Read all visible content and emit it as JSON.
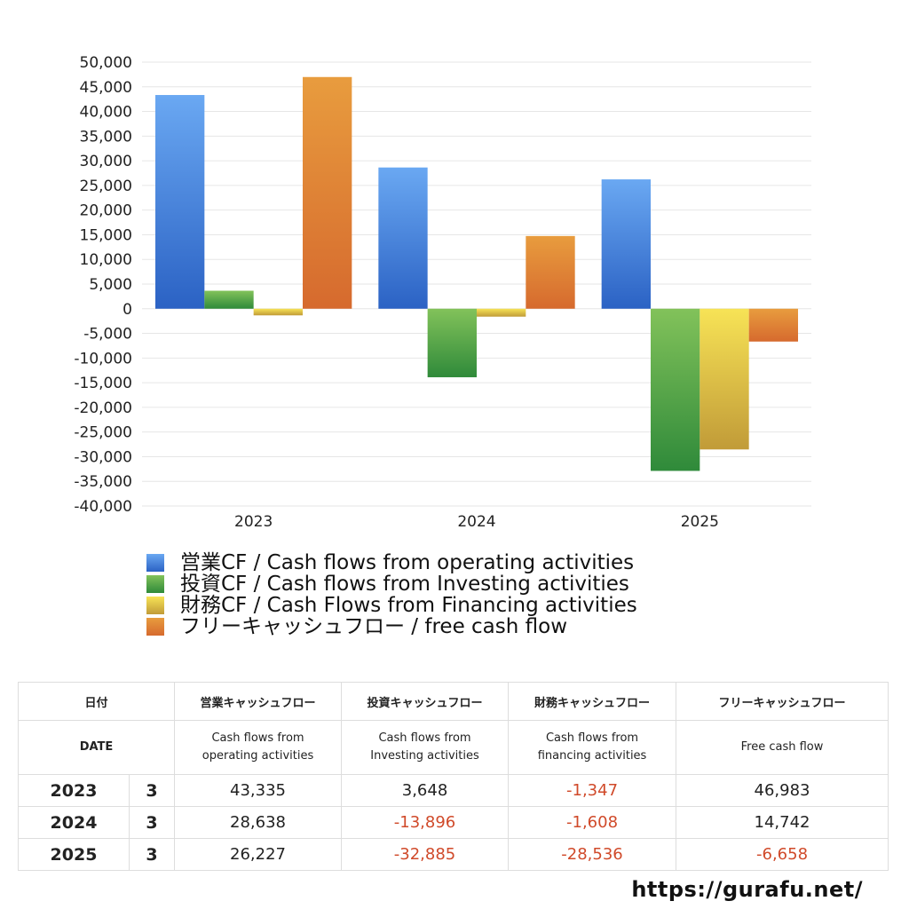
{
  "chart_data": {
    "type": "bar",
    "categories": [
      "2023",
      "2024",
      "2025"
    ],
    "ylim": [
      -40000,
      50000
    ],
    "y_ticks": [
      "50,000",
      "45,000",
      "40,000",
      "35,000",
      "30,000",
      "25,000",
      "20,000",
      "15,000",
      "10,000",
      "5,000",
      "0",
      "-5,000",
      "-10,000",
      "-15,000",
      "-20,000",
      "-25,000",
      "-30,000",
      "-35,000",
      "-40,000"
    ],
    "grid": true,
    "legend_placement": "bottom",
    "series": [
      {
        "name": "営業CF / Cash flows from operating activities",
        "values": [
          43335,
          28638,
          26227
        ],
        "color_top": "#6aa8f2",
        "color_bottom": "#2b62c4"
      },
      {
        "name": "投資CF / Cash flows from Investing activities",
        "values": [
          3648,
          -13896,
          -32885
        ],
        "color_top": "#82c25a",
        "color_bottom": "#2f8a3a"
      },
      {
        "name": "財務CF / Cash Flows from Financing activities",
        "values": [
          -1347,
          -1608,
          -28536
        ],
        "color_top": "#f7e356",
        "color_bottom": "#c19b38"
      },
      {
        "name": "フリーキャッシュフロー / free cash flow",
        "values": [
          46983,
          14742,
          -6658
        ],
        "color_top": "#e89c3e",
        "color_bottom": "#d66a2e"
      }
    ]
  },
  "table": {
    "header": {
      "date_jp": "日付",
      "operating_jp": "営業キャッシュフロー",
      "investing_jp": "投資キャッシュフロー",
      "financing_jp": "財務キャッシュフロー",
      "free_jp": "フリーキャッシュフロー",
      "date_en": "DATE",
      "operating_en_1": "Cash flows from",
      "operating_en_2": "operating activities",
      "investing_en_1": "Cash flows from",
      "investing_en_2": "Investing activities",
      "financing_en_1": "Cash flows from",
      "financing_en_2": "financing activities",
      "free_en": "Free cash flow"
    },
    "rows": [
      {
        "year": "2023",
        "month": "3",
        "operating": "43,335",
        "investing": "3,648",
        "financing": "-1,347",
        "free": "46,983"
      },
      {
        "year": "2024",
        "month": "3",
        "operating": "28,638",
        "investing": "-13,896",
        "financing": "-1,608",
        "free": "14,742"
      },
      {
        "year": "2025",
        "month": "3",
        "operating": "26,227",
        "investing": "-32,885",
        "financing": "-28,536",
        "free": "-6,658"
      }
    ]
  },
  "footer": {
    "url": "https://gurafu.net/"
  }
}
